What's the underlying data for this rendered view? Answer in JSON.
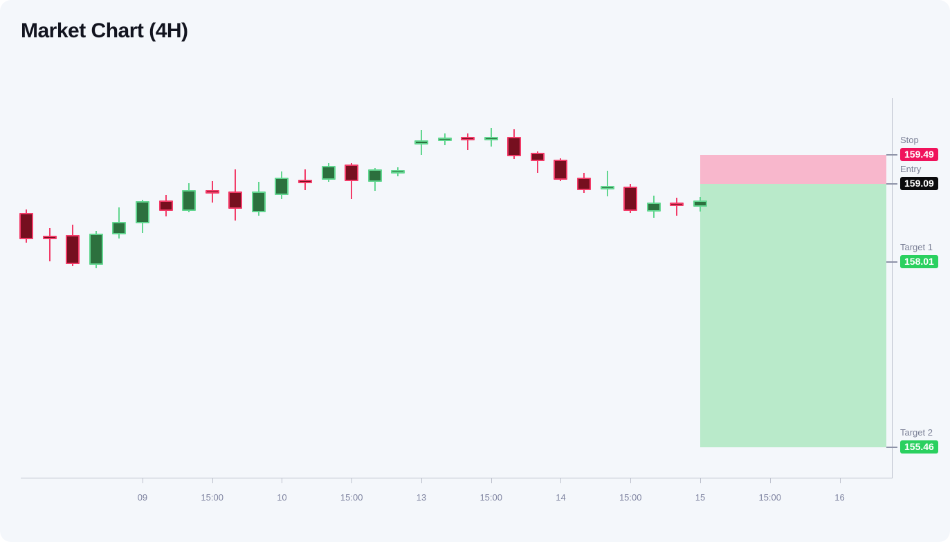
{
  "title": "Market Chart (4H)",
  "colors": {
    "card_bg": "#f4f7fb",
    "title_text": "#12141f",
    "axis_line": "#bcc0cc",
    "tick_text": "#7e83a0",
    "level_tick": "#8e93a8",
    "level_label_text": "#7b8096",
    "bull_stroke": "#62d690",
    "bull_fill": "#2c703e",
    "bear_stroke": "#f23b68",
    "bear_fill": "#760f1f",
    "stop_zone": "#f8b7cc",
    "profit_zone": "#b9eaca",
    "stop_badge": "#f0135c",
    "entry_badge": "#0b0b0d",
    "target_badge": "#2ad05f"
  },
  "chart_data": {
    "type": "candlestick",
    "title": "Market Chart (4H)",
    "timeframe": "4H",
    "ylim": [
      155.04,
      160.27
    ],
    "grid": false,
    "legend": "none",
    "x_axis": {
      "ticks": [
        {
          "slot": 5,
          "label": "09"
        },
        {
          "slot": 8,
          "label": "15:00"
        },
        {
          "slot": 11,
          "label": "10"
        },
        {
          "slot": 14,
          "label": "15:00"
        },
        {
          "slot": 17,
          "label": "13"
        },
        {
          "slot": 20,
          "label": "15:00"
        },
        {
          "slot": 23,
          "label": "14"
        },
        {
          "slot": 26,
          "label": "15:00"
        },
        {
          "slot": 29,
          "label": "15"
        },
        {
          "slot": 32,
          "label": "15:00"
        },
        {
          "slot": 35,
          "label": "16"
        }
      ]
    },
    "candles": [
      {
        "o": 158.69,
        "h": 158.74,
        "l": 158.28,
        "c": 158.33
      },
      {
        "o": 158.36,
        "h": 158.48,
        "l": 158.02,
        "c": 158.35
      },
      {
        "o": 158.39,
        "h": 158.53,
        "l": 157.96,
        "c": 157.99
      },
      {
        "o": 157.98,
        "h": 158.44,
        "l": 157.93,
        "c": 158.4
      },
      {
        "o": 158.39,
        "h": 158.77,
        "l": 158.34,
        "c": 158.57
      },
      {
        "o": 158.55,
        "h": 158.87,
        "l": 158.41,
        "c": 158.85
      },
      {
        "o": 158.86,
        "h": 158.94,
        "l": 158.64,
        "c": 158.72
      },
      {
        "o": 158.72,
        "h": 159.1,
        "l": 158.7,
        "c": 159.0
      },
      {
        "o": 158.99,
        "h": 159.13,
        "l": 158.83,
        "c": 158.97
      },
      {
        "o": 158.99,
        "h": 159.29,
        "l": 158.59,
        "c": 158.75
      },
      {
        "o": 158.7,
        "h": 159.12,
        "l": 158.65,
        "c": 158.99
      },
      {
        "o": 158.94,
        "h": 159.26,
        "l": 158.88,
        "c": 159.18
      },
      {
        "o": 159.13,
        "h": 159.29,
        "l": 159.0,
        "c": 159.11
      },
      {
        "o": 159.15,
        "h": 159.38,
        "l": 159.12,
        "c": 159.34
      },
      {
        "o": 159.36,
        "h": 159.38,
        "l": 158.88,
        "c": 159.13
      },
      {
        "o": 159.12,
        "h": 159.31,
        "l": 158.99,
        "c": 159.29
      },
      {
        "o": 159.24,
        "h": 159.32,
        "l": 159.19,
        "c": 159.27
      },
      {
        "o": 159.63,
        "h": 159.83,
        "l": 159.49,
        "c": 159.69
      },
      {
        "o": 159.68,
        "h": 159.79,
        "l": 159.62,
        "c": 159.72
      },
      {
        "o": 159.73,
        "h": 159.79,
        "l": 159.56,
        "c": 159.69
      },
      {
        "o": 159.69,
        "h": 159.86,
        "l": 159.6,
        "c": 159.73
      },
      {
        "o": 159.74,
        "h": 159.84,
        "l": 159.43,
        "c": 159.47
      },
      {
        "o": 159.52,
        "h": 159.54,
        "l": 159.24,
        "c": 159.4
      },
      {
        "o": 159.42,
        "h": 159.44,
        "l": 159.13,
        "c": 159.15
      },
      {
        "o": 159.18,
        "h": 159.24,
        "l": 158.97,
        "c": 159.0
      },
      {
        "o": 159.02,
        "h": 159.27,
        "l": 158.92,
        "c": 159.06
      },
      {
        "o": 159.05,
        "h": 159.09,
        "l": 158.69,
        "c": 158.72
      },
      {
        "o": 158.71,
        "h": 158.93,
        "l": 158.62,
        "c": 158.83
      },
      {
        "o": 158.82,
        "h": 158.9,
        "l": 158.65,
        "c": 158.79
      },
      {
        "o": 158.78,
        "h": 158.91,
        "l": 158.71,
        "c": 158.86
      }
    ],
    "levels": {
      "stop": {
        "label": "Stop",
        "price": 159.49,
        "value": "159.49",
        "color": "#f0135c"
      },
      "entry": {
        "label": "Entry",
        "price": 159.09,
        "value": "159.09",
        "color": "#0b0b0d"
      },
      "target1": {
        "label": "Target 1",
        "price": 158.01,
        "value": "158.01",
        "color": "#2ad05f"
      },
      "target2": {
        "label": "Target 2",
        "price": 155.46,
        "value": "155.46",
        "color": "#2ad05f"
      }
    },
    "zones": [
      {
        "name": "stop-zone",
        "top_price": 159.49,
        "bottom_price": 159.09,
        "color": "#f8b7cc"
      },
      {
        "name": "profit-zone",
        "top_price": 159.09,
        "bottom_price": 155.46,
        "color": "#b9eaca"
      }
    ]
  }
}
